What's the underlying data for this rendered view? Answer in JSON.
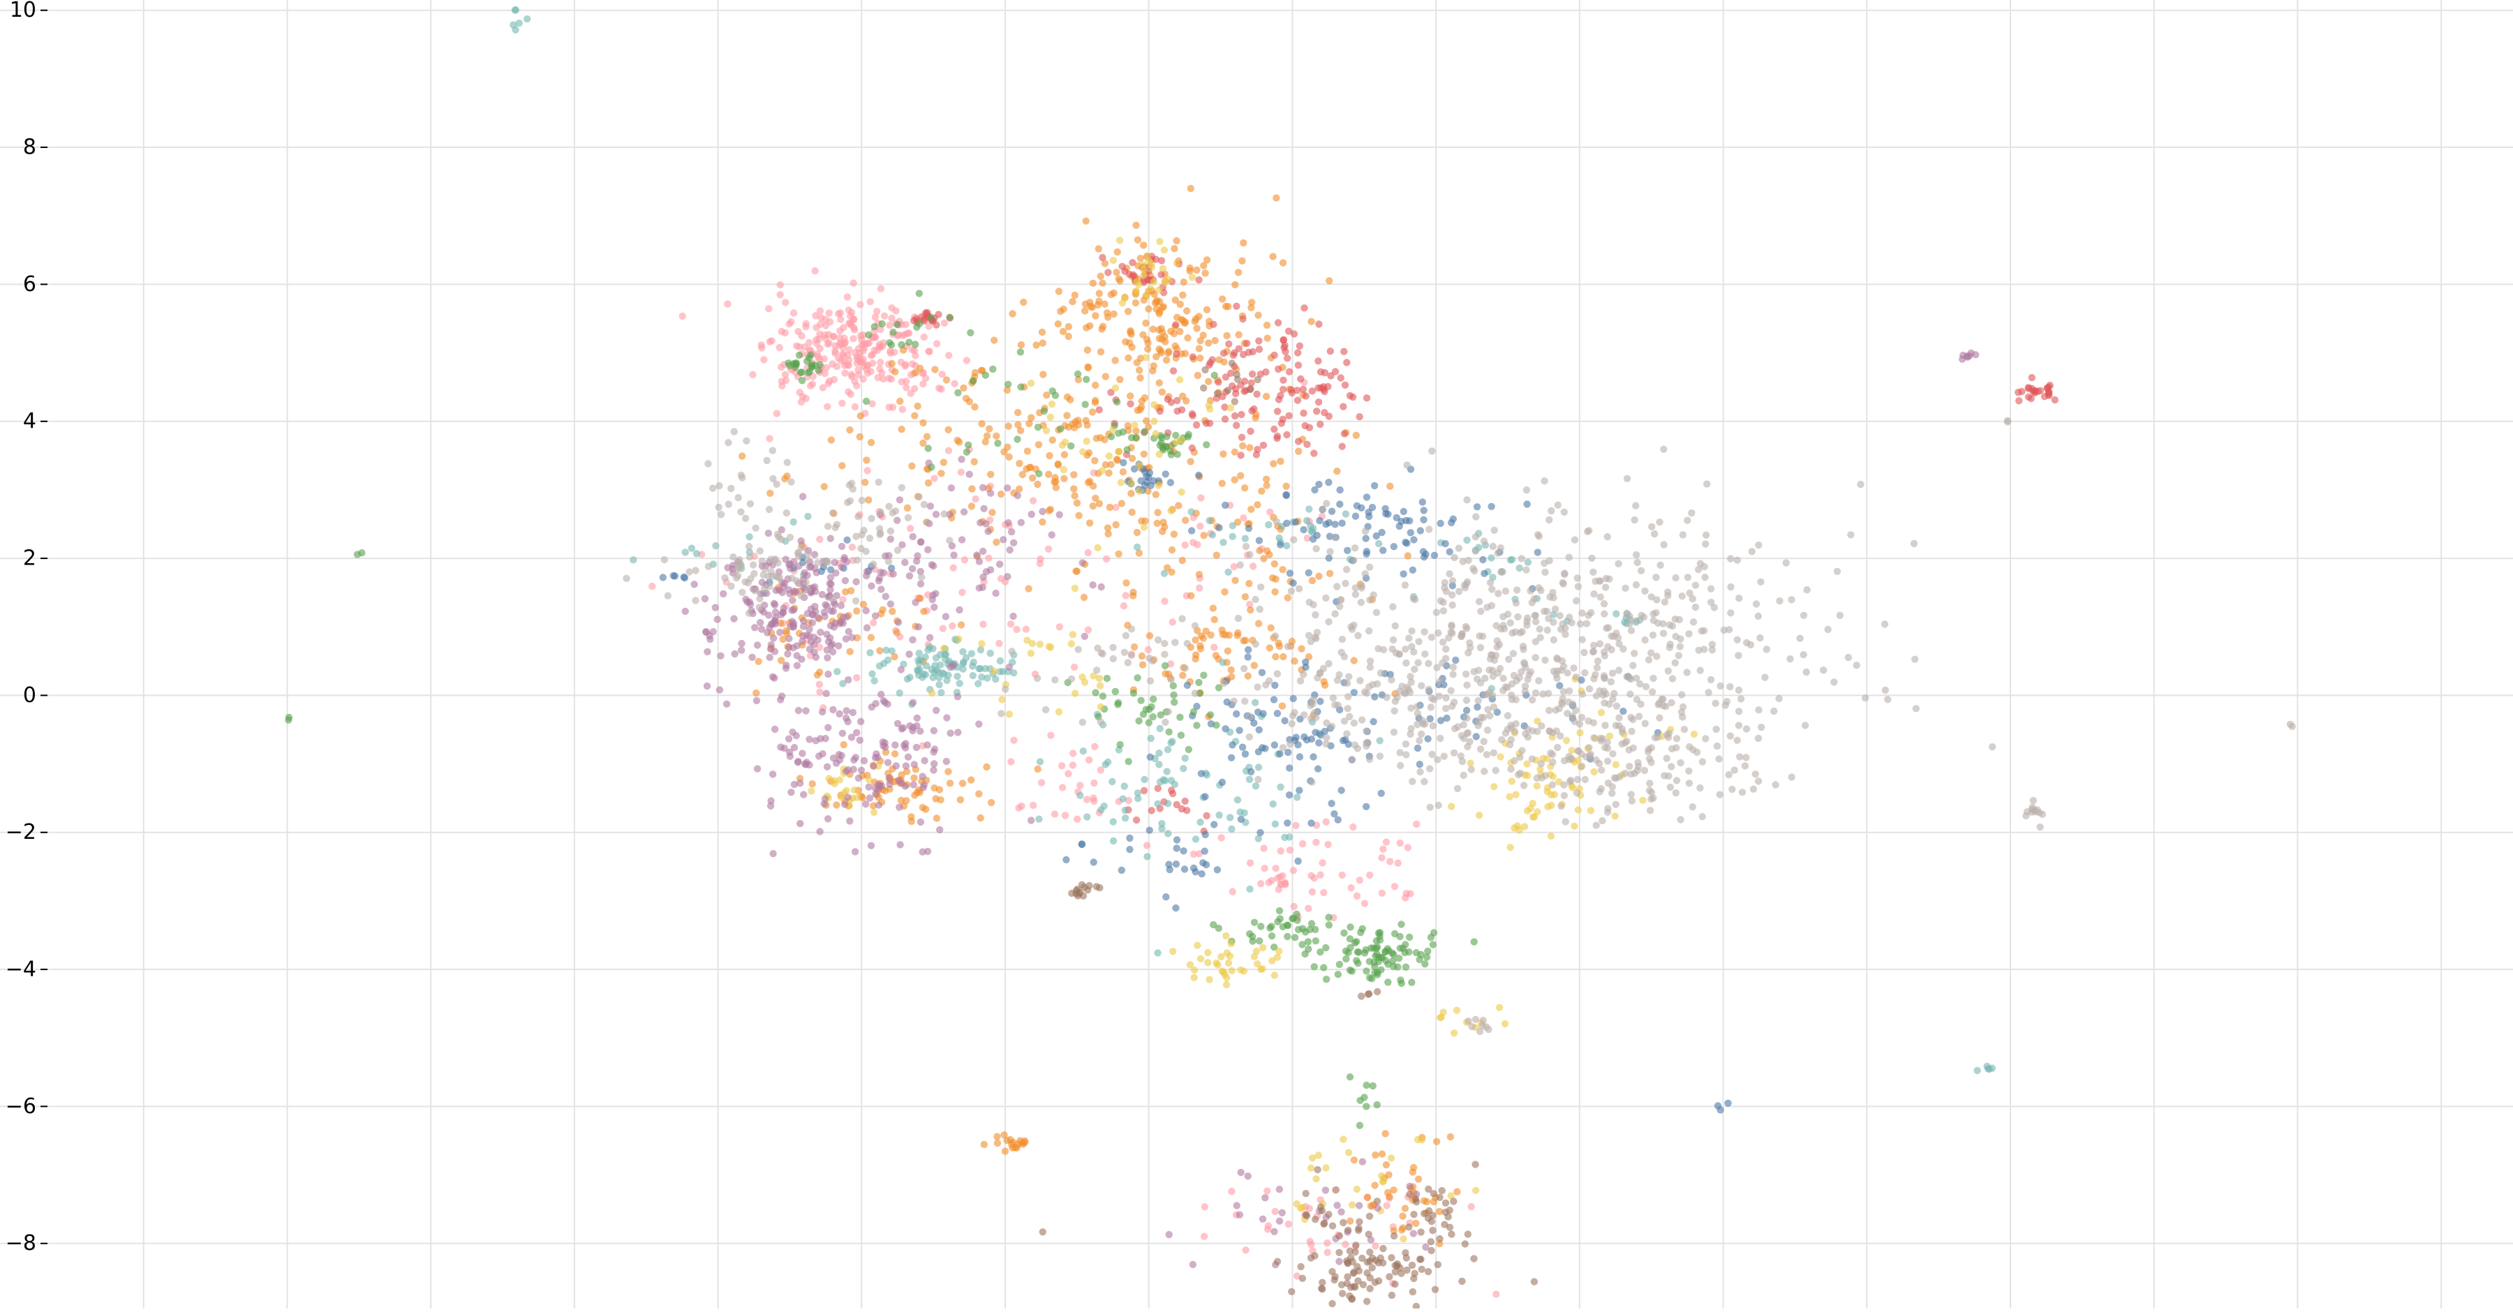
{
  "chart_data": {
    "type": "scatter",
    "title": "",
    "xlabel": "",
    "ylabel": "",
    "grid": true,
    "legend": "none",
    "xlim": [
      -1.0,
      16.5
    ],
    "ylim": [
      -8.95,
      10.15
    ],
    "x_ticks": [
      0,
      1,
      2,
      3,
      4,
      5,
      6,
      7,
      8,
      9,
      10,
      11,
      12,
      13,
      14,
      15,
      16
    ],
    "y_ticks": [
      -8,
      -6,
      -4,
      -2,
      0,
      2,
      4,
      6,
      8,
      10
    ],
    "y_tick_labels": [
      "−8",
      "−6",
      "−4",
      "−2",
      "0",
      "2",
      "4",
      "6",
      "8",
      "10"
    ],
    "colors": {
      "blue": "#4e79a7",
      "orange": "#f28e2b",
      "red": "#e15759",
      "teal": "#76b7b2",
      "green": "#59a14f",
      "yellow": "#edc948",
      "purple": "#b07aa1",
      "pink": "#ff9da7",
      "brown": "#9c755f",
      "gray": "#bab0ac"
    },
    "series": [
      {
        "color": "pink",
        "clusters": [
          {
            "x": 4.95,
            "y": 4.95,
            "sx": 0.3,
            "sy": 0.4,
            "n": 260
          },
          {
            "x": 8.1,
            "y": -2.6,
            "sx": 0.35,
            "sy": 0.35,
            "n": 60
          },
          {
            "x": 6.4,
            "y": -1.2,
            "sx": 0.25,
            "sy": 0.3,
            "n": 25
          },
          {
            "x": 5.85,
            "y": 1.5,
            "sx": 0.9,
            "sy": 1.1,
            "n": 90
          },
          {
            "x": 8.4,
            "y": -7.8,
            "sx": 0.6,
            "sy": 0.4,
            "n": 35
          },
          {
            "x": 7.6,
            "y": 2.4,
            "sx": 0.3,
            "sy": 0.3,
            "n": 15
          }
        ]
      },
      {
        "color": "orange",
        "clusters": [
          {
            "x": 7.0,
            "y": 5.5,
            "sx": 0.4,
            "sy": 0.6,
            "n": 200
          },
          {
            "x": 6.2,
            "y": 3.6,
            "sx": 0.7,
            "sy": 0.7,
            "n": 180
          },
          {
            "x": 7.5,
            "y": 2.6,
            "sx": 0.6,
            "sy": 0.9,
            "n": 110
          },
          {
            "x": 5.3,
            "y": -1.3,
            "sx": 0.3,
            "sy": 0.25,
            "n": 70
          },
          {
            "x": 7.5,
            "y": 0.6,
            "sx": 0.3,
            "sy": 0.35,
            "n": 60
          },
          {
            "x": 8.8,
            "y": -7.3,
            "sx": 0.2,
            "sy": 0.4,
            "n": 40
          },
          {
            "x": 6.05,
            "y": -6.5,
            "sx": 0.08,
            "sy": 0.08,
            "n": 18
          },
          {
            "x": 4.7,
            "y": 1.0,
            "sx": 0.35,
            "sy": 0.4,
            "n": 45
          }
        ]
      },
      {
        "color": "red",
        "clusters": [
          {
            "x": 7.9,
            "y": 4.6,
            "sx": 0.3,
            "sy": 0.5,
            "n": 120
          },
          {
            "x": 6.95,
            "y": 6.2,
            "sx": 0.12,
            "sy": 0.15,
            "n": 30
          },
          {
            "x": 5.45,
            "y": 5.5,
            "sx": 0.08,
            "sy": 0.06,
            "n": 18
          },
          {
            "x": 13.2,
            "y": 4.45,
            "sx": 0.07,
            "sy": 0.08,
            "n": 25
          },
          {
            "x": 7.2,
            "y": -1.6,
            "sx": 0.15,
            "sy": 0.2,
            "n": 15
          },
          {
            "x": 7.1,
            "y": 4.1,
            "sx": 0.4,
            "sy": 0.5,
            "n": 25
          }
        ]
      },
      {
        "color": "teal",
        "clusters": [
          {
            "x": 5.6,
            "y": 0.4,
            "sx": 0.25,
            "sy": 0.2,
            "n": 90
          },
          {
            "x": 7.2,
            "y": -1.3,
            "sx": 0.5,
            "sy": 0.6,
            "n": 80
          },
          {
            "x": 7.7,
            "y": 2.4,
            "sx": 0.4,
            "sy": 0.3,
            "n": 25
          },
          {
            "x": 9.5,
            "y": 1.7,
            "sx": 0.3,
            "sy": 0.4,
            "n": 20
          },
          {
            "x": 10.35,
            "y": 1.1,
            "sx": 0.05,
            "sy": 0.08,
            "n": 8
          },
          {
            "x": 2.6,
            "y": 9.85,
            "sx": 0.05,
            "sy": 0.1,
            "n": 6
          },
          {
            "x": 12.85,
            "y": -5.45,
            "sx": 0.04,
            "sy": 0.05,
            "n": 5
          },
          {
            "x": 4.0,
            "y": 2.0,
            "sx": 0.4,
            "sy": 0.3,
            "n": 15
          }
        ]
      },
      {
        "color": "blue",
        "clusters": [
          {
            "x": 8.7,
            "y": 2.5,
            "sx": 0.5,
            "sy": 0.4,
            "n": 90
          },
          {
            "x": 7.9,
            "y": -0.6,
            "sx": 0.3,
            "sy": 0.5,
            "n": 80
          },
          {
            "x": 6.95,
            "y": 3.2,
            "sx": 0.1,
            "sy": 0.1,
            "n": 20
          },
          {
            "x": 9.3,
            "y": -0.2,
            "sx": 0.5,
            "sy": 0.4,
            "n": 40
          },
          {
            "x": 7.2,
            "y": -2.3,
            "sx": 0.4,
            "sy": 0.3,
            "n": 30
          },
          {
            "x": 3.7,
            "y": 1.75,
            "sx": 0.04,
            "sy": 0.03,
            "n": 5
          },
          {
            "x": 11.0,
            "y": -6.0,
            "sx": 0.03,
            "sy": 0.03,
            "n": 3
          },
          {
            "x": 4.8,
            "y": 1.9,
            "sx": 0.2,
            "sy": 0.2,
            "n": 12
          }
        ]
      },
      {
        "color": "green",
        "clusters": [
          {
            "x": 8.6,
            "y": -3.8,
            "sx": 0.2,
            "sy": 0.2,
            "n": 90
          },
          {
            "x": 7.9,
            "y": -3.4,
            "sx": 0.2,
            "sy": 0.15,
            "n": 35
          },
          {
            "x": 7.1,
            "y": 3.7,
            "sx": 0.15,
            "sy": 0.1,
            "n": 25
          },
          {
            "x": 7.1,
            "y": -0.2,
            "sx": 0.3,
            "sy": 0.3,
            "n": 40
          },
          {
            "x": 4.6,
            "y": 4.8,
            "sx": 0.08,
            "sy": 0.08,
            "n": 22
          },
          {
            "x": 8.5,
            "y": -6.1,
            "sx": 0.05,
            "sy": 0.35,
            "n": 8
          },
          {
            "x": 1.0,
            "y": -0.35,
            "sx": 0.02,
            "sy": 0.02,
            "n": 2
          },
          {
            "x": 1.5,
            "y": 2.05,
            "sx": 0.02,
            "sy": 0.02,
            "n": 2
          },
          {
            "x": 6.3,
            "y": 4.2,
            "sx": 0.5,
            "sy": 0.5,
            "n": 30
          },
          {
            "x": 5.3,
            "y": 5.3,
            "sx": 0.15,
            "sy": 0.2,
            "n": 15
          }
        ]
      },
      {
        "color": "yellow",
        "clusters": [
          {
            "x": 9.7,
            "y": -1.4,
            "sx": 0.25,
            "sy": 0.35,
            "n": 50
          },
          {
            "x": 7.55,
            "y": -3.9,
            "sx": 0.2,
            "sy": 0.15,
            "n": 35
          },
          {
            "x": 7.0,
            "y": 6.2,
            "sx": 0.15,
            "sy": 0.3,
            "n": 25
          },
          {
            "x": 6.9,
            "y": 3.7,
            "sx": 0.4,
            "sy": 0.5,
            "n": 35
          },
          {
            "x": 4.9,
            "y": -1.4,
            "sx": 0.12,
            "sy": 0.2,
            "n": 20
          },
          {
            "x": 10.2,
            "y": -0.8,
            "sx": 0.3,
            "sy": 0.4,
            "n": 25
          },
          {
            "x": 9.2,
            "y": -4.7,
            "sx": 0.15,
            "sy": 0.1,
            "n": 10
          },
          {
            "x": 6.2,
            "y": 0.5,
            "sx": 0.4,
            "sy": 0.4,
            "n": 25
          },
          {
            "x": 8.5,
            "y": -7.1,
            "sx": 0.35,
            "sy": 0.4,
            "n": 25
          }
        ]
      },
      {
        "color": "purple",
        "clusters": [
          {
            "x": 4.5,
            "y": 1.2,
            "sx": 0.3,
            "sy": 0.45,
            "n": 200
          },
          {
            "x": 5.0,
            "y": -0.7,
            "sx": 0.35,
            "sy": 0.6,
            "n": 160
          },
          {
            "x": 5.4,
            "y": 1.8,
            "sx": 0.45,
            "sy": 0.5,
            "n": 70
          },
          {
            "x": 12.7,
            "y": 4.98,
            "sx": 0.05,
            "sy": 0.05,
            "n": 7
          },
          {
            "x": 8.1,
            "y": -7.7,
            "sx": 0.4,
            "sy": 0.4,
            "n": 30
          },
          {
            "x": 5.9,
            "y": 2.6,
            "sx": 0.3,
            "sy": 0.4,
            "n": 25
          }
        ]
      },
      {
        "color": "brown",
        "clusters": [
          {
            "x": 8.5,
            "y": -8.4,
            "sx": 0.3,
            "sy": 0.25,
            "n": 90
          },
          {
            "x": 9.0,
            "y": -7.7,
            "sx": 0.12,
            "sy": 0.3,
            "n": 30
          },
          {
            "x": 6.55,
            "y": -2.85,
            "sx": 0.07,
            "sy": 0.05,
            "n": 14
          },
          {
            "x": 7.6,
            "y": 4.5,
            "sx": 0.1,
            "sy": 0.2,
            "n": 10
          },
          {
            "x": 8.1,
            "y": -7.5,
            "sx": 0.3,
            "sy": 0.2,
            "n": 15
          },
          {
            "x": 6.3,
            "y": -7.85,
            "sx": 0.02,
            "sy": 0.02,
            "n": 1
          },
          {
            "x": 8.55,
            "y": -4.4,
            "sx": 0.05,
            "sy": 0.05,
            "n": 4
          }
        ]
      },
      {
        "color": "gray",
        "clusters": [
          {
            "x": 9.8,
            "y": 0.9,
            "sx": 0.9,
            "sy": 0.9,
            "n": 550
          },
          {
            "x": 10.4,
            "y": -0.8,
            "sx": 0.5,
            "sy": 0.5,
            "n": 180
          },
          {
            "x": 8.7,
            "y": -0.3,
            "sx": 0.5,
            "sy": 0.6,
            "n": 120
          },
          {
            "x": 4.3,
            "y": 1.8,
            "sx": 0.3,
            "sy": 0.25,
            "n": 60
          },
          {
            "x": 5.1,
            "y": 2.5,
            "sx": 0.2,
            "sy": 0.3,
            "n": 40
          },
          {
            "x": 4.2,
            "y": 3.0,
            "sx": 0.2,
            "sy": 0.6,
            "n": 30
          },
          {
            "x": 13.2,
            "y": -1.65,
            "sx": 0.05,
            "sy": 0.1,
            "n": 12
          },
          {
            "x": 9.3,
            "y": -4.85,
            "sx": 0.06,
            "sy": 0.05,
            "n": 8
          },
          {
            "x": 13.0,
            "y": 3.98,
            "sx": 0.02,
            "sy": 0.02,
            "n": 2
          },
          {
            "x": 14.95,
            "y": -0.45,
            "sx": 0.02,
            "sy": 0.02,
            "n": 2
          },
          {
            "x": 6.85,
            "y": 0.5,
            "sx": 0.5,
            "sy": 0.5,
            "n": 40
          }
        ]
      }
    ]
  }
}
